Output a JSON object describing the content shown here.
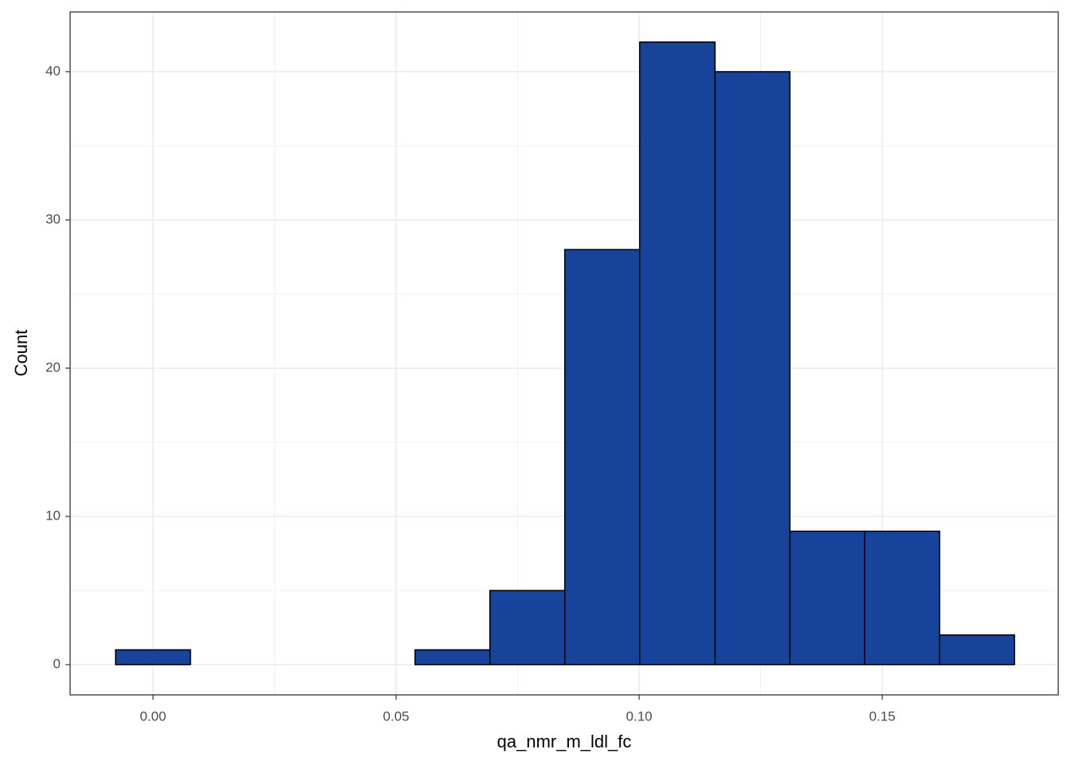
{
  "chart_data": {
    "type": "histogram",
    "bins": [
      -0.0077,
      0.0077,
      0.0231,
      0.0385,
      0.0539,
      0.0693,
      0.0847,
      0.1001,
      0.1156,
      0.131,
      0.1464,
      0.1618,
      0.1772
    ],
    "values": [
      1,
      0,
      0,
      0,
      1,
      5,
      28,
      42,
      40,
      9,
      9,
      2
    ],
    "color": "#17449a",
    "x_label": "qa_nmr_m_ldl_fc",
    "y_label": "Count",
    "xlim": [
      -0.01705,
      0.1862
    ],
    "ylim": [
      -2.04,
      44.03
    ],
    "xticks": [
      {
        "value": 0,
        "label": "0.00"
      },
      {
        "value": 0.05,
        "label": "0.05"
      },
      {
        "value": 0.1,
        "label": "0.10"
      },
      {
        "value": 0.15,
        "label": "0.15"
      }
    ],
    "yticks": [
      0,
      10,
      20,
      30,
      40
    ],
    "grid": true,
    "minor_grid": true
  }
}
